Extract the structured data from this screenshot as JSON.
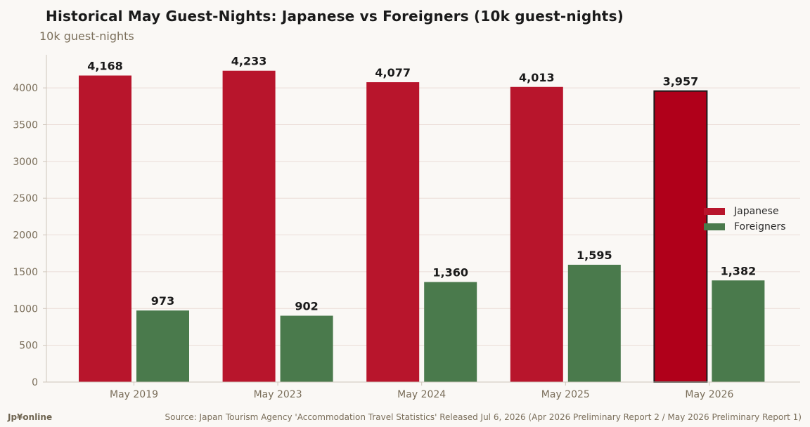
{
  "title": "Historical May Guest-Nights: Japanese vs Foreigners (10k guest-nights)",
  "subtitle": "10k guest-nights",
  "brand": "Jp¥online",
  "source": "Source: Japan Tourism Agency 'Accommodation Travel Statistics' Released Jul 6, 2026 (Apr 2026 Preliminary Report 2 / May 2026 Preliminary Report 1)",
  "colors": {
    "japanese": "#b8152c",
    "japanese_highlight": "#b0001a",
    "foreigners": "#4a7a4c",
    "grid": "#eadcd6",
    "axis": "#cfc6bb",
    "tick_text": "#7a6e5a",
    "label_text": "#1a1a1a"
  },
  "chart_data": {
    "type": "bar",
    "title": "Historical May Guest-Nights: Japanese vs Foreigners (10k guest-nights)",
    "ylabel": "10k guest-nights",
    "xlabel": "",
    "categories": [
      "May 2019",
      "May 2023",
      "May 2024",
      "May 2025",
      "May 2026"
    ],
    "series": [
      {
        "name": "Japanese",
        "values": [
          4168,
          4233,
          4077,
          4013,
          3957
        ],
        "labels": [
          "4,168",
          "4,233",
          "4,077",
          "4,013",
          "3,957"
        ]
      },
      {
        "name": "Foreigners",
        "values": [
          973,
          902,
          1360,
          1595,
          1382
        ],
        "labels": [
          "973",
          "902",
          "1,360",
          "1,595",
          "1,382"
        ]
      }
    ],
    "highlight_category": "May 2026",
    "ylim": [
      0,
      4450
    ],
    "yticks": [
      0,
      500,
      1000,
      1500,
      2000,
      2500,
      3000,
      3500,
      4000
    ],
    "grid": true,
    "legend_position": "right"
  }
}
